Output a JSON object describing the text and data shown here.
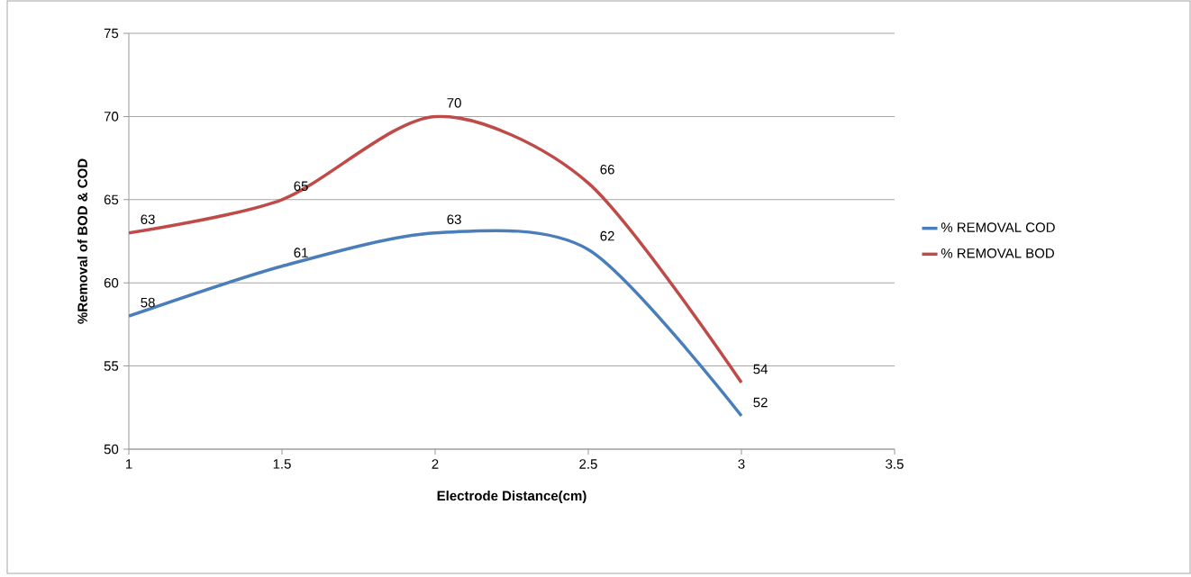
{
  "chart_data": {
    "type": "line",
    "xlabel": "Electrode Distance(cm)",
    "ylabel": "%Removal of BOD & COD",
    "x": [
      1,
      1.5,
      2,
      2.5,
      3
    ],
    "series": [
      {
        "name": "% REMOVAL COD",
        "color": "#4a7ebb",
        "values": [
          58,
          61,
          63,
          62,
          52
        ]
      },
      {
        "name": "% REMOVAL BOD",
        "color": "#be4b48",
        "values": [
          63,
          65,
          70,
          66,
          54
        ]
      }
    ],
    "xlim": [
      1,
      3.5
    ],
    "ylim": [
      50,
      75
    ],
    "xticks": [
      1,
      1.5,
      2,
      2.5,
      3,
      3.5
    ],
    "yticks": [
      50,
      55,
      60,
      65,
      70,
      75
    ],
    "grid": "y",
    "legend": "right",
    "marker": "none",
    "line_style": "solid",
    "data_labels": true
  }
}
